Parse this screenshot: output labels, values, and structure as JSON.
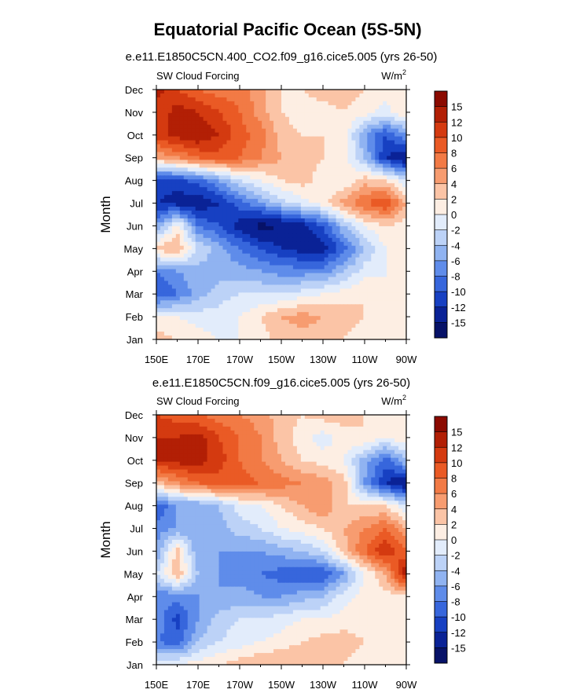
{
  "figure": {
    "title": "Equatorial Pacific Ocean (5S-5N)"
  },
  "colorbar": {
    "levels": [
      "15",
      "12",
      "10",
      "8",
      "6",
      "4",
      "2",
      "0",
      "-2",
      "-4",
      "-6",
      "-8",
      "-10",
      "-12",
      "-15"
    ],
    "colors": [
      "#8b0a00",
      "#b21f05",
      "#d43a10",
      "#ea5a25",
      "#f27a45",
      "#f79c70",
      "#fbc4a6",
      "#fdeee3",
      "#e2ecfb",
      "#bcd2f7",
      "#90b3f1",
      "#5f8cea",
      "#3766dc",
      "#1740c2",
      "#0a2296",
      "#071268"
    ]
  },
  "chart_data": [
    {
      "type": "heatmap",
      "subtitle": "e.e11.E1850C5CN.400_CO2.f09_g16.cice5.005 (yrs 26-50)",
      "left_label": "SW Cloud Forcing",
      "units": "W/m",
      "units_sup": "2",
      "ylabel": "Month",
      "xlabel": "",
      "x_ticks": [
        "150E",
        "170E",
        "170W",
        "150W",
        "130W",
        "110W",
        "90W"
      ],
      "y_ticks": [
        "Jan",
        "Feb",
        "Mar",
        "Apr",
        "May",
        "Jun",
        "Jul",
        "Aug",
        "Sep",
        "Oct",
        "Nov",
        "Dec"
      ],
      "lon_range": [
        150,
        270
      ],
      "color_range": [
        -15,
        15
      ],
      "grid_lon": [
        150,
        160,
        170,
        180,
        190,
        200,
        210,
        220,
        230,
        240,
        250,
        260,
        270
      ],
      "grid_month": [
        "Jan",
        "Feb",
        "Mar",
        "Apr",
        "May",
        "Jun",
        "Jul",
        "Aug",
        "Sep",
        "Oct",
        "Nov",
        "Dec"
      ],
      "values": [
        [
          3,
          2,
          1,
          0,
          0,
          1,
          3,
          3,
          3,
          2,
          1,
          0,
          2
        ],
        [
          0,
          0,
          -1,
          -1,
          0,
          2,
          4,
          5,
          4,
          3,
          2,
          0,
          2
        ],
        [
          -10,
          -8,
          -5,
          -3,
          -2,
          -2,
          -2,
          -1,
          0,
          1,
          2,
          0,
          2
        ],
        [
          -8,
          -6,
          -5,
          -5,
          -5,
          -6,
          -7,
          -7,
          -7,
          -4,
          -1,
          0,
          2
        ],
        [
          3,
          4,
          -2,
          -5,
          -8,
          -10,
          -12,
          -13,
          -13,
          -9,
          -4,
          0,
          2
        ],
        [
          -6,
          1,
          -8,
          -10,
          -13,
          -16,
          -15,
          -13,
          -10,
          -4,
          0,
          2,
          1
        ],
        [
          -12,
          -13,
          -14,
          -12,
          -9,
          -6,
          -3,
          -1,
          1,
          5,
          8,
          10,
          4
        ],
        [
          -11,
          -11,
          -9,
          -6,
          -2,
          0,
          2,
          3,
          1,
          0,
          3,
          2,
          -2
        ],
        [
          4,
          6,
          8,
          9,
          8,
          6,
          4,
          3,
          2,
          1,
          -4,
          -12,
          -15
        ],
        [
          11,
          13,
          14,
          12,
          9,
          7,
          3,
          2,
          2,
          1,
          -6,
          -10,
          -6
        ],
        [
          10,
          13,
          12,
          10,
          8,
          5,
          2,
          1,
          1,
          2,
          1,
          -1,
          2
        ],
        [
          13,
          10,
          8,
          7,
          7,
          5,
          2,
          2,
          3,
          3,
          2,
          1,
          2
        ]
      ]
    },
    {
      "type": "heatmap",
      "subtitle": "e.e11.E1850C5CN.f09_g16.cice5.005 (yrs 26-50)",
      "left_label": "SW Cloud Forcing",
      "units": "W/m",
      "units_sup": "2",
      "ylabel": "Month",
      "xlabel": "",
      "x_ticks": [
        "150E",
        "170E",
        "170W",
        "150W",
        "130W",
        "110W",
        "90W"
      ],
      "y_ticks": [
        "Jan",
        "Feb",
        "Mar",
        "Apr",
        "May",
        "Jun",
        "Jul",
        "Aug",
        "Sep",
        "Oct",
        "Nov",
        "Dec"
      ],
      "lon_range": [
        150,
        270
      ],
      "color_range": [
        -15,
        15
      ],
      "grid_lon": [
        150,
        160,
        170,
        180,
        190,
        200,
        210,
        220,
        230,
        240,
        250,
        260,
        270
      ],
      "grid_month": [
        "Jan",
        "Feb",
        "Mar",
        "Apr",
        "May",
        "Jun",
        "Jul",
        "Aug",
        "Sep",
        "Oct",
        "Nov",
        "Dec"
      ],
      "values": [
        [
          -1,
          0,
          1,
          2,
          3,
          4,
          4,
          4,
          3,
          2,
          1,
          0,
          1
        ],
        [
          -8,
          -9,
          -4,
          -2,
          -1,
          0,
          1,
          2,
          3,
          3,
          2,
          0,
          1
        ],
        [
          -6,
          -11,
          -6,
          -3,
          -2,
          -2,
          -1,
          0,
          0,
          1,
          1,
          0,
          1
        ],
        [
          -8,
          -7,
          -6,
          -6,
          -5,
          -6,
          -6,
          -5,
          -4,
          -1,
          1,
          1,
          2
        ],
        [
          -2,
          4,
          -4,
          -6,
          -7,
          -8,
          -9,
          -10,
          -10,
          -6,
          0,
          4,
          14
        ],
        [
          -6,
          3,
          -6,
          -6,
          -6,
          -6,
          -5,
          -4,
          -2,
          3,
          8,
          12,
          8
        ],
        [
          -7,
          -6,
          -6,
          -5,
          -3,
          -2,
          0,
          1,
          2,
          4,
          6,
          8,
          4
        ],
        [
          -10,
          -6,
          -6,
          -4,
          -1,
          0,
          2,
          4,
          6,
          2,
          2,
          2,
          -2
        ],
        [
          3,
          6,
          8,
          9,
          9,
          8,
          7,
          6,
          5,
          3,
          -6,
          -12,
          -15
        ],
        [
          12,
          13,
          13,
          11,
          8,
          6,
          4,
          2,
          1,
          0,
          -5,
          -9,
          -4
        ],
        [
          12,
          12,
          13,
          10,
          8,
          6,
          3,
          1,
          -1,
          1,
          2,
          0,
          2
        ],
        [
          10,
          9,
          8,
          7,
          6,
          5,
          3,
          2,
          3,
          3,
          2,
          1,
          2
        ]
      ]
    }
  ]
}
